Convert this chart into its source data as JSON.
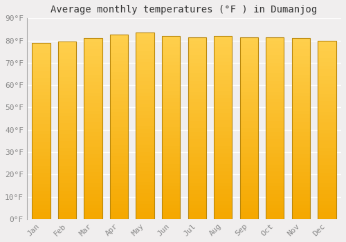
{
  "title": "Average monthly temperatures (°F ) in Dumanjog",
  "months": [
    "Jan",
    "Feb",
    "Mar",
    "Apr",
    "May",
    "Jun",
    "Jul",
    "Aug",
    "Sep",
    "Oct",
    "Nov",
    "Dec"
  ],
  "values": [
    79,
    79.5,
    81,
    82.5,
    83.5,
    82,
    81.5,
    82,
    81.5,
    81.5,
    81,
    80
  ],
  "ylim": [
    0,
    90
  ],
  "yticks": [
    0,
    10,
    20,
    30,
    40,
    50,
    60,
    70,
    80,
    90
  ],
  "bar_color_top": "#FFD04E",
  "bar_color_bottom": "#F5A800",
  "bar_edge_color": "#B8860B",
  "background_color": "#F0EEEE",
  "grid_color": "#FFFFFF",
  "title_fontsize": 10,
  "tick_fontsize": 8,
  "font_family": "monospace"
}
